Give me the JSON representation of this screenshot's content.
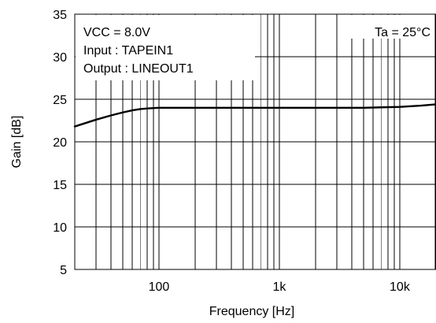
{
  "chart_data": {
    "type": "line",
    "title": "",
    "xlabel": "Frequency [Hz]",
    "ylabel": "Gain [dB]",
    "x_scale": "log",
    "xlim": [
      20,
      20000
    ],
    "ylim": [
      5,
      35
    ],
    "x_ticks": [
      {
        "value": 100,
        "label": "100"
      },
      {
        "value": 1000,
        "label": "1k"
      },
      {
        "value": 10000,
        "label": "10k"
      }
    ],
    "y_ticks": [
      {
        "value": 5,
        "label": "5"
      },
      {
        "value": 10,
        "label": "10"
      },
      {
        "value": 15,
        "label": "15"
      },
      {
        "value": 20,
        "label": "20"
      },
      {
        "value": 25,
        "label": "25"
      },
      {
        "value": 30,
        "label": "30"
      },
      {
        "value": 35,
        "label": "35"
      }
    ],
    "grid": true,
    "annotations": {
      "vcc": "VCC = 8.0V",
      "input": "Input : TAPEIN1",
      "output": "Output : LINEOUT1",
      "ta": "Ta = 25°C"
    },
    "series": [
      {
        "x": [
          20,
          30,
          40,
          50,
          60,
          70,
          80,
          90,
          100,
          150,
          200,
          300,
          500,
          1000,
          2000,
          3000,
          5000,
          7000,
          10000,
          15000,
          20000
        ],
        "y": [
          21.8,
          22.6,
          23.1,
          23.45,
          23.7,
          23.85,
          23.92,
          23.96,
          24.0,
          24.0,
          24.0,
          24.0,
          24.0,
          24.0,
          24.0,
          24.0,
          24.0,
          24.05,
          24.1,
          24.25,
          24.4
        ]
      }
    ]
  },
  "colors": {
    "line": "#000000",
    "grid": "#000000",
    "background": "#ffffff"
  }
}
